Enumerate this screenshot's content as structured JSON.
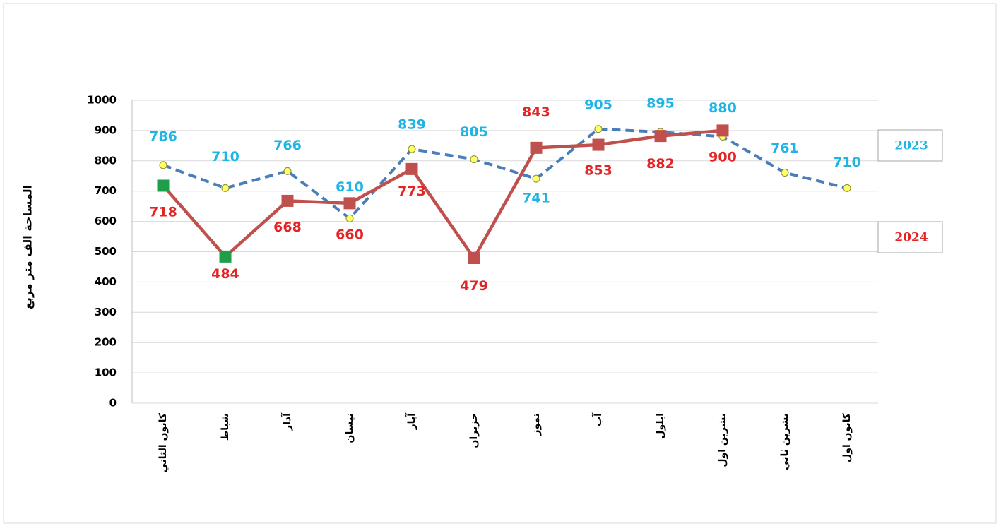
{
  "chart_data": {
    "type": "line",
    "y_label": "المساحة الف متر مربع",
    "categories": [
      "كانون الثاني",
      "شباط",
      "آذار",
      "نيسان",
      "آيار",
      "حزيران",
      "تموز",
      "آب",
      "ايلول",
      "تشرين اول",
      "تشرين ثاني",
      "كانون اول"
    ],
    "series": [
      {
        "name": "2023",
        "color": "#4a7ebb",
        "dash": true,
        "marker": "circle",
        "marker_color": "#ffff66",
        "label_color": "#1fb4e4",
        "values": [
          786,
          710,
          766,
          610,
          839,
          805,
          741,
          905,
          895,
          880,
          761,
          710
        ]
      },
      {
        "name": "2024",
        "color": "#c0504d",
        "dash": false,
        "marker": "square",
        "label_color": "#e32424",
        "marker_colors": [
          "#1e9e4a",
          "#1e9e4a",
          "#c0504d",
          "#c0504d",
          "#c0504d",
          "#c0504d",
          "#c0504d",
          "#c0504d",
          "#c0504d",
          "#c0504d",
          null,
          null
        ],
        "values": [
          718,
          484,
          668,
          660,
          773,
          479,
          843,
          853,
          882,
          900,
          null,
          null
        ]
      }
    ],
    "ylim": [
      0,
      1000
    ],
    "yticks": [
      0,
      100,
      200,
      300,
      400,
      500,
      600,
      700,
      800,
      900,
      1000
    ],
    "grid": true
  }
}
